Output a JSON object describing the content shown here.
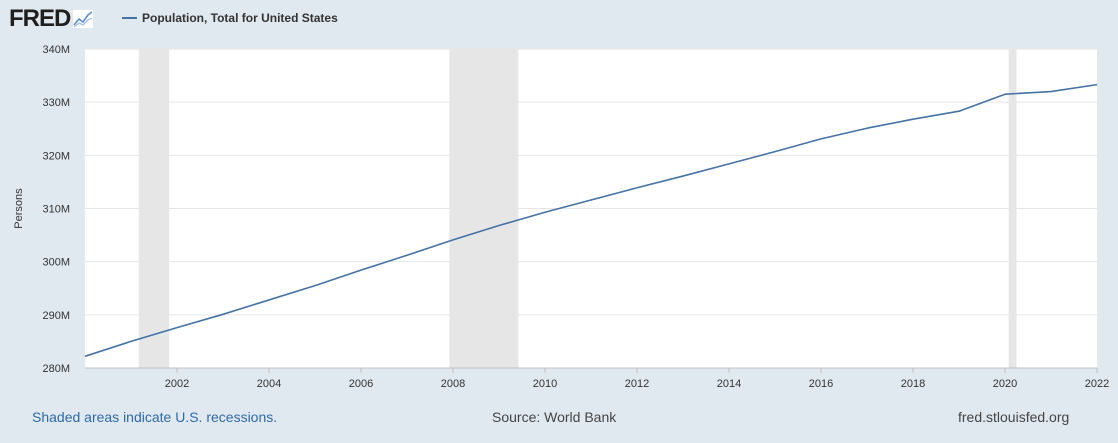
{
  "header": {
    "logo_text": "FRED",
    "series_label": "Population, Total for United States"
  },
  "footer": {
    "recession_note": "Shaded areas indicate U.S. recessions.",
    "source": "Source: World Bank",
    "site": "fred.stlouisfed.org"
  },
  "colors": {
    "line": "#4572a7",
    "recession": "#e6e6e6",
    "background": "#e1e9f0",
    "plot": "#ffffff",
    "footer_link": "#2e6aa6"
  },
  "icons": [
    "chart-line-icon"
  ],
  "chart_data": {
    "type": "line",
    "title": "",
    "xlabel": "",
    "ylabel": "Persons",
    "xlim": [
      2000,
      2022
    ],
    "ylim": [
      280,
      340
    ],
    "y_unit_suffix": "M",
    "y_ticks": [
      "280M",
      "290M",
      "300M",
      "310M",
      "320M",
      "330M",
      "340M"
    ],
    "y_tick_values": [
      280,
      290,
      300,
      310,
      320,
      330,
      340
    ],
    "x_ticks": [
      "2002",
      "2004",
      "2006",
      "2008",
      "2010",
      "2012",
      "2014",
      "2016",
      "2018",
      "2020",
      "2022"
    ],
    "x_tick_values": [
      2002,
      2004,
      2006,
      2008,
      2010,
      2012,
      2014,
      2016,
      2018,
      2020,
      2022
    ],
    "grid": true,
    "recessions": [
      {
        "start": 2001.17,
        "end": 2001.83
      },
      {
        "start": 2007.92,
        "end": 2009.42
      },
      {
        "start": 2020.08,
        "end": 2020.25
      }
    ],
    "series": [
      {
        "name": "Population, Total for United States",
        "x": [
          2000,
          2001,
          2002,
          2003,
          2004,
          2005,
          2006,
          2007,
          2008,
          2009,
          2010,
          2011,
          2012,
          2013,
          2014,
          2015,
          2016,
          2017,
          2018,
          2019,
          2020,
          2021,
          2022
        ],
        "values": [
          282.2,
          285.0,
          287.6,
          290.1,
          292.8,
          295.5,
          298.4,
          301.2,
          304.1,
          306.8,
          309.3,
          311.6,
          313.9,
          316.1,
          318.4,
          320.7,
          323.1,
          325.1,
          326.8,
          328.3,
          331.5,
          332.0,
          333.3
        ]
      }
    ]
  }
}
